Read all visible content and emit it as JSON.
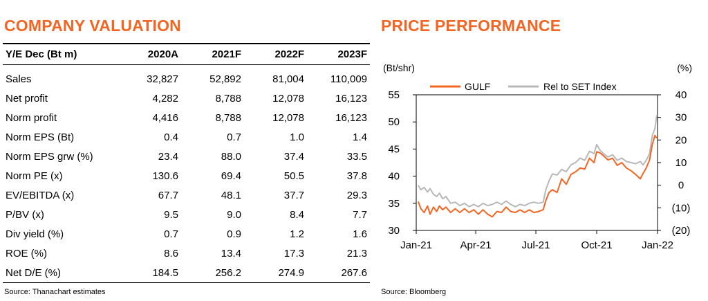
{
  "valuation": {
    "title": "COMPANY VALUATION",
    "columns": [
      "Y/E Dec (Bt m)",
      "2020A",
      "2021F",
      "2022F",
      "2023F"
    ],
    "rows": [
      [
        "Sales",
        "32,827",
        "52,892",
        "81,004",
        "110,009"
      ],
      [
        "Net profit",
        "4,282",
        "8,788",
        "12,078",
        "16,123"
      ],
      [
        "Norm profit",
        "4,416",
        "8,788",
        "12,078",
        "16,123"
      ],
      [
        "Norm EPS (Bt)",
        "0.4",
        "0.7",
        "1.0",
        "1.4"
      ],
      [
        "Norm EPS grw (%)",
        "23.4",
        "88.0",
        "37.4",
        "33.5"
      ],
      [
        "Norm PE (x)",
        "130.6",
        "69.4",
        "50.5",
        "37.8"
      ],
      [
        "EV/EBITDA (x)",
        "67.7",
        "48.1",
        "37.7",
        "29.3"
      ],
      [
        "P/BV (x)",
        "9.5",
        "9.0",
        "8.4",
        "7.7"
      ],
      [
        "Div yield (%)",
        "0.7",
        "0.9",
        "1.2",
        "1.6"
      ],
      [
        "ROE (%)",
        "8.6",
        "13.4",
        "17.3",
        "21.3"
      ],
      [
        "Net D/E (%)",
        "184.5",
        "256.2",
        "274.9",
        "267.6"
      ]
    ],
    "source": "Source: Thanachart estimates"
  },
  "performance": {
    "title": "PRICE PERFORMANCE",
    "source": "Source: Bloomberg"
  },
  "chart_data": {
    "type": "line",
    "left_axis_label": "(Bt/shr)",
    "right_axis_label": "(%)",
    "left_ylim": [
      30,
      55
    ],
    "left_ticks": [
      30,
      35,
      40,
      45,
      50,
      55
    ],
    "right_ylim": [
      -20,
      40
    ],
    "right_ticks": [
      "(20)",
      "(10)",
      "0",
      "10",
      "20",
      "30",
      "40"
    ],
    "x_ticks": [
      "Jan-21",
      "Apr-21",
      "Jul-21",
      "Oct-21",
      "Jan-22"
    ],
    "x_range": [
      "2021-01-01",
      "2022-01-01"
    ],
    "legend_position": "top",
    "colors": {
      "gulf": "#f26522",
      "rel": "#b8b8b8"
    },
    "series": [
      {
        "name": "GULF",
        "axis": "left",
        "points": [
          [
            "2021-01-04",
            35.3
          ],
          [
            "2021-01-08",
            34.0
          ],
          [
            "2021-01-13",
            33.3
          ],
          [
            "2021-01-18",
            34.5
          ],
          [
            "2021-01-22",
            33.0
          ],
          [
            "2021-01-27",
            34.3
          ],
          [
            "2021-02-01",
            33.5
          ],
          [
            "2021-02-05",
            34.5
          ],
          [
            "2021-02-10",
            33.8
          ],
          [
            "2021-02-15",
            34.3
          ],
          [
            "2021-02-22",
            33.3
          ],
          [
            "2021-03-01",
            34.0
          ],
          [
            "2021-03-08",
            33.3
          ],
          [
            "2021-03-15",
            34.0
          ],
          [
            "2021-03-22",
            33.3
          ],
          [
            "2021-03-29",
            33.8
          ],
          [
            "2021-04-05",
            33.0
          ],
          [
            "2021-04-12",
            33.8
          ],
          [
            "2021-04-19",
            33.0
          ],
          [
            "2021-04-26",
            32.5
          ],
          [
            "2021-05-03",
            33.5
          ],
          [
            "2021-05-10",
            33.3
          ],
          [
            "2021-05-17",
            34.3
          ],
          [
            "2021-05-24",
            33.5
          ],
          [
            "2021-05-31",
            33.3
          ],
          [
            "2021-06-07",
            33.8
          ],
          [
            "2021-06-14",
            33.3
          ],
          [
            "2021-06-21",
            33.8
          ],
          [
            "2021-06-28",
            33.3
          ],
          [
            "2021-07-05",
            33.5
          ],
          [
            "2021-07-12",
            33.8
          ],
          [
            "2021-07-16",
            35.5
          ],
          [
            "2021-07-21",
            37.0
          ],
          [
            "2021-07-26",
            37.5
          ],
          [
            "2021-08-02",
            37.0
          ],
          [
            "2021-08-09",
            39.5
          ],
          [
            "2021-08-16",
            38.5
          ],
          [
            "2021-08-23",
            40.3
          ],
          [
            "2021-08-30",
            40.8
          ],
          [
            "2021-09-06",
            41.5
          ],
          [
            "2021-09-13",
            41.3
          ],
          [
            "2021-09-20",
            43.3
          ],
          [
            "2021-09-27",
            42.5
          ],
          [
            "2021-10-01",
            44.5
          ],
          [
            "2021-10-06",
            44.3
          ],
          [
            "2021-10-11",
            43.8
          ],
          [
            "2021-10-18",
            43.0
          ],
          [
            "2021-10-25",
            43.3
          ],
          [
            "2021-11-01",
            42.0
          ],
          [
            "2021-11-08",
            42.5
          ],
          [
            "2021-11-15",
            41.5
          ],
          [
            "2021-11-22",
            41.0
          ],
          [
            "2021-11-29",
            40.3
          ],
          [
            "2021-12-06",
            39.5
          ],
          [
            "2021-12-10",
            40.5
          ],
          [
            "2021-12-15",
            41.5
          ],
          [
            "2021-12-20",
            43.0
          ],
          [
            "2021-12-24",
            45.8
          ],
          [
            "2021-12-28",
            47.5
          ],
          [
            "2021-12-31",
            47.0
          ]
        ]
      },
      {
        "name": "Rel to SET Index",
        "axis": "right",
        "points": [
          [
            "2021-01-04",
            0.0
          ],
          [
            "2021-01-08",
            -2.0
          ],
          [
            "2021-01-13",
            -1.0
          ],
          [
            "2021-01-18",
            -3.0
          ],
          [
            "2021-01-22",
            -1.5
          ],
          [
            "2021-01-27",
            -4.0
          ],
          [
            "2021-02-01",
            -5.0
          ],
          [
            "2021-02-05",
            -3.5
          ],
          [
            "2021-02-10",
            -6.0
          ],
          [
            "2021-02-15",
            -5.0
          ],
          [
            "2021-02-22",
            -8.0
          ],
          [
            "2021-03-01",
            -7.5
          ],
          [
            "2021-03-08",
            -9.0
          ],
          [
            "2021-03-15",
            -8.0
          ],
          [
            "2021-03-22",
            -9.5
          ],
          [
            "2021-03-29",
            -8.5
          ],
          [
            "2021-04-05",
            -9.5
          ],
          [
            "2021-04-12",
            -8.0
          ],
          [
            "2021-04-19",
            -9.0
          ],
          [
            "2021-04-26",
            -8.5
          ],
          [
            "2021-05-03",
            -7.5
          ],
          [
            "2021-05-10",
            -8.5
          ],
          [
            "2021-05-17",
            -7.0
          ],
          [
            "2021-05-24",
            -8.5
          ],
          [
            "2021-05-31",
            -9.5
          ],
          [
            "2021-06-07",
            -8.5
          ],
          [
            "2021-06-14",
            -9.0
          ],
          [
            "2021-06-21",
            -8.0
          ],
          [
            "2021-06-28",
            -7.5
          ],
          [
            "2021-07-05",
            -8.0
          ],
          [
            "2021-07-12",
            -7.5
          ],
          [
            "2021-07-16",
            -2.0
          ],
          [
            "2021-07-21",
            2.0
          ],
          [
            "2021-07-26",
            5.0
          ],
          [
            "2021-08-02",
            4.5
          ],
          [
            "2021-08-09",
            7.0
          ],
          [
            "2021-08-16",
            6.0
          ],
          [
            "2021-08-23",
            9.0
          ],
          [
            "2021-08-30",
            10.0
          ],
          [
            "2021-09-06",
            12.0
          ],
          [
            "2021-09-13",
            11.0
          ],
          [
            "2021-09-20",
            15.0
          ],
          [
            "2021-09-27",
            14.0
          ],
          [
            "2021-10-01",
            18.0
          ],
          [
            "2021-10-06",
            15.5
          ],
          [
            "2021-10-11",
            14.0
          ],
          [
            "2021-10-18",
            12.5
          ],
          [
            "2021-10-25",
            13.5
          ],
          [
            "2021-11-01",
            11.0
          ],
          [
            "2021-11-08",
            12.0
          ],
          [
            "2021-11-15",
            10.5
          ],
          [
            "2021-11-22",
            10.0
          ],
          [
            "2021-11-29",
            9.5
          ],
          [
            "2021-12-06",
            10.5
          ],
          [
            "2021-12-10",
            9.0
          ],
          [
            "2021-12-15",
            11.0
          ],
          [
            "2021-12-20",
            14.0
          ],
          [
            "2021-12-24",
            22.0
          ],
          [
            "2021-12-28",
            25.0
          ],
          [
            "2021-12-31",
            31.0
          ]
        ]
      }
    ]
  }
}
